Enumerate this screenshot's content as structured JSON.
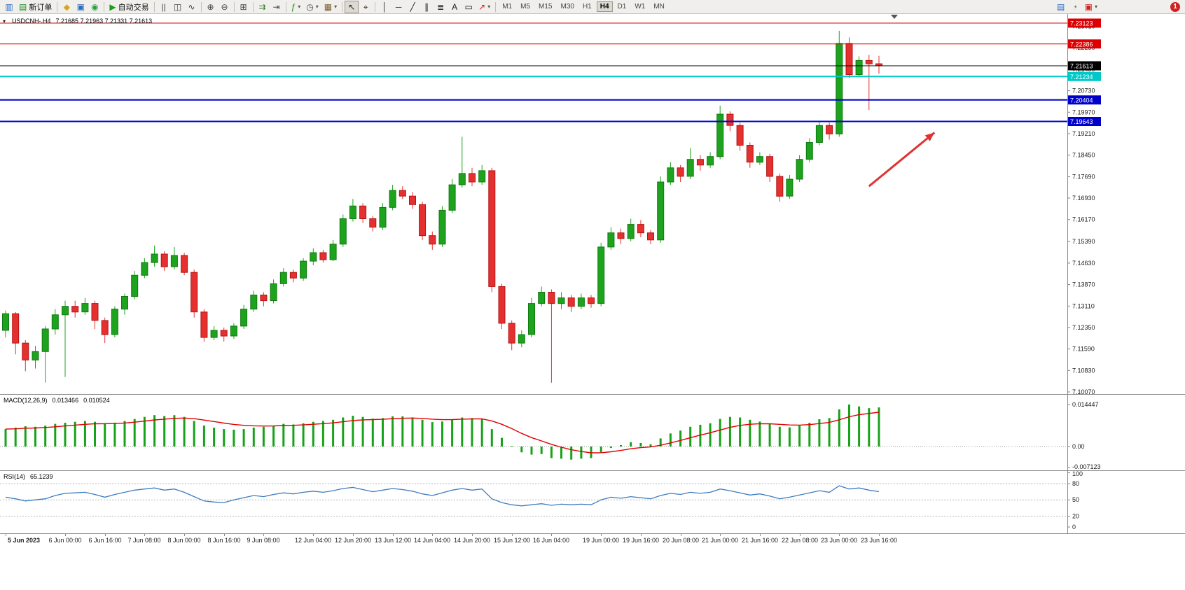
{
  "toolbar": {
    "caret_glyph": "▾",
    "notification_count": "1",
    "timeframes": [
      "M1",
      "M5",
      "M15",
      "M30",
      "H1",
      "H4",
      "D1",
      "W1",
      "MN"
    ],
    "active_timeframe": "H4",
    "items": [
      {
        "name": "new-chart-icon",
        "glyph": "▥",
        "glyph_color": "#2a6bc4"
      },
      {
        "name": "new-order-button",
        "icon_name": "new-order-icon",
        "glyph": "▤",
        "glyph_color": "#1e8a1e",
        "label": "新订单"
      },
      {
        "sep": true
      },
      {
        "name": "metaeditor-icon",
        "glyph": "◆",
        "glyph_color": "#d9a520"
      },
      {
        "name": "market-watch-icon",
        "glyph": "▣",
        "glyph_color": "#2a6bc4"
      },
      {
        "name": "navigator-icon",
        "glyph": "◉",
        "glyph_color": "#2aa045"
      },
      {
        "sep": true
      },
      {
        "name": "autotrading-button",
        "icon_name": "autotrading-icon",
        "glyph": "▶",
        "glyph_color": "#18a018",
        "label": "自动交易"
      },
      {
        "sep": true
      },
      {
        "name": "bar-chart-mode-icon",
        "glyph": "||",
        "glyph_color": "#444444"
      },
      {
        "name": "candlestick-mode-icon",
        "glyph": "◫",
        "glyph_color": "#444444"
      },
      {
        "name": "line-chart-mode-icon",
        "glyph": "∿",
        "glyph_color": "#444444"
      },
      {
        "sep": true
      },
      {
        "name": "zoom-in-icon",
        "glyph": "⊕",
        "glyph_color": "#444444"
      },
      {
        "name": "zoom-out-icon",
        "glyph": "⊖",
        "glyph_color": "#444444"
      },
      {
        "sep": true
      },
      {
        "name": "tile-windows-icon",
        "glyph": "⊞",
        "glyph_color": "#444444"
      },
      {
        "sep": true
      },
      {
        "name": "auto-scroll-icon",
        "glyph": "⇉",
        "glyph_color": "#2a7d2a"
      },
      {
        "name": "chart-shift-icon",
        "glyph": "⇥",
        "glyph_color": "#444444"
      },
      {
        "sep": true
      },
      {
        "name": "indicators-icon",
        "glyph": "ƒ",
        "glyph_color": "#1e8a1e",
        "caret": true
      },
      {
        "name": "periods-icon",
        "glyph": "◷",
        "glyph_color": "#444444",
        "caret": true
      },
      {
        "name": "templates-icon",
        "glyph": "▦",
        "glyph_color": "#7a5c2e",
        "caret": true
      },
      {
        "sep": true
      },
      {
        "name": "cursor-icon",
        "glyph": "↖",
        "glyph_color": "#222222",
        "pressed": true
      },
      {
        "name": "crosshair-icon",
        "glyph": "⌖",
        "glyph_color": "#222222"
      },
      {
        "sep": true
      },
      {
        "name": "vertical-line-icon",
        "glyph": "│",
        "glyph_color": "#222222"
      },
      {
        "name": "horizontal-line-icon",
        "glyph": "─",
        "glyph_color": "#222222"
      },
      {
        "name": "trendline-icon",
        "glyph": "╱",
        "glyph_color": "#222222"
      },
      {
        "name": "channel-icon",
        "glyph": "∥",
        "glyph_color": "#222222"
      },
      {
        "name": "fibonacci-icon",
        "glyph": "≣",
        "glyph_color": "#222222"
      },
      {
        "name": "text-icon",
        "glyph": "A",
        "glyph_color": "#222222"
      },
      {
        "name": "label-icon",
        "glyph": "▭",
        "glyph_color": "#222222"
      },
      {
        "name": "arrows-tool-icon",
        "glyph": "↗",
        "glyph_color": "#c02222",
        "caret": true
      },
      {
        "sep": true
      },
      {
        "timeframes": true
      }
    ],
    "right_icons": [
      {
        "name": "market-depth-icon",
        "glyph": "▤",
        "glyph_color": "#2a6bc4"
      },
      {
        "name": "alerts-icon",
        "glyph": "◔",
        "glyph_color": "#666666"
      },
      {
        "name": "news-icon",
        "glyph": "▣",
        "glyph_color": "#cc2222",
        "caret": true
      }
    ]
  },
  "chart": {
    "collapse_glyph": "▾",
    "symbol_title": "USDCNH-.H4",
    "ohlc_text": "7.21685 7.21963 7.21331 7.21613"
  },
  "chart_data": {
    "type": "candlestick",
    "symbol": "USDCNH",
    "timeframe": "H4",
    "ylim": [
      7.09996,
      7.23445
    ],
    "colors": {
      "up": "#1ea31e",
      "up_border": "#0f7a0f",
      "down": "#e53030",
      "down_border": "#b31414",
      "background": "#ffffff"
    },
    "price_axis_labels": [
      7.2301,
      7.2225,
      7.2149,
      7.2073,
      7.1997,
      7.1921,
      7.1845,
      7.1769,
      7.1693,
      7.1617,
      7.1539,
      7.1463,
      7.1387,
      7.1311,
      7.1235,
      7.1159,
      7.1083,
      7.1007
    ],
    "hlines": [
      {
        "price": 7.23123,
        "label": "7.23123",
        "color": "#dd0000",
        "width": 1
      },
      {
        "price": 7.22386,
        "label": "7.22386",
        "color": "#dd0000",
        "width": 1
      },
      {
        "price": 7.21613,
        "label": "7.21613",
        "color": "#000000",
        "width": 1,
        "role": "current-price"
      },
      {
        "price": 7.21234,
        "label": "7.21234",
        "color": "#00c8c8",
        "width": 2
      },
      {
        "price": 7.20404,
        "label": "7.20404",
        "color": "#0000cc",
        "width": 2
      },
      {
        "price": 7.19643,
        "label": "7.19643",
        "color": "#0000cc",
        "width": 2
      }
    ],
    "candles": [
      [
        7.1225,
        7.1295,
        7.12,
        7.1284
      ],
      [
        7.1284,
        7.129,
        7.114,
        7.118
      ],
      [
        7.118,
        7.119,
        7.108,
        7.112
      ],
      [
        7.112,
        7.117,
        7.109,
        7.115
      ],
      [
        7.115,
        7.124,
        7.104,
        7.123
      ],
      [
        7.123,
        7.13,
        7.121,
        7.128
      ],
      [
        7.128,
        7.133,
        7.106,
        7.131
      ],
      [
        7.131,
        7.133,
        7.127,
        7.129
      ],
      [
        7.129,
        7.134,
        7.128,
        7.132
      ],
      [
        7.132,
        7.133,
        7.123,
        7.126
      ],
      [
        7.126,
        7.127,
        7.118,
        7.121
      ],
      [
        7.121,
        7.131,
        7.12,
        7.13
      ],
      [
        7.13,
        7.1355,
        7.128,
        7.1345
      ],
      [
        7.1345,
        7.1435,
        7.1335,
        7.142
      ],
      [
        7.142,
        7.148,
        7.141,
        7.1465
      ],
      [
        7.1465,
        7.1525,
        7.145,
        7.1495
      ],
      [
        7.1495,
        7.1505,
        7.1435,
        7.145
      ],
      [
        7.145,
        7.152,
        7.144,
        7.149
      ],
      [
        7.149,
        7.15,
        7.142,
        7.143
      ],
      [
        7.143,
        7.144,
        7.127,
        7.129
      ],
      [
        7.129,
        7.13,
        7.1185,
        7.12
      ],
      [
        7.12,
        7.124,
        7.119,
        7.1225
      ],
      [
        7.1225,
        7.1235,
        7.1185,
        7.1205
      ],
      [
        7.1205,
        7.125,
        7.1195,
        7.124
      ],
      [
        7.124,
        7.1315,
        7.123,
        7.13
      ],
      [
        7.13,
        7.1365,
        7.129,
        7.135
      ],
      [
        7.135,
        7.136,
        7.131,
        7.133
      ],
      [
        7.133,
        7.1405,
        7.132,
        7.139
      ],
      [
        7.139,
        7.1445,
        7.138,
        7.143
      ],
      [
        7.143,
        7.144,
        7.1395,
        7.141
      ],
      [
        7.141,
        7.148,
        7.14,
        7.147
      ],
      [
        7.147,
        7.1515,
        7.1455,
        7.15
      ],
      [
        7.15,
        7.151,
        7.1465,
        7.1475
      ],
      [
        7.1475,
        7.1545,
        7.147,
        7.153
      ],
      [
        7.153,
        7.1635,
        7.152,
        7.162
      ],
      [
        7.162,
        7.169,
        7.161,
        7.1665
      ],
      [
        7.1665,
        7.1675,
        7.1605,
        7.162
      ],
      [
        7.162,
        7.163,
        7.1575,
        7.159
      ],
      [
        7.159,
        7.1675,
        7.158,
        7.166
      ],
      [
        7.166,
        7.174,
        7.165,
        7.172
      ],
      [
        7.172,
        7.1735,
        7.169,
        7.17
      ],
      [
        7.17,
        7.1715,
        7.1655,
        7.167
      ],
      [
        7.167,
        7.168,
        7.1545,
        7.156
      ],
      [
        7.156,
        7.1575,
        7.151,
        7.153
      ],
      [
        7.153,
        7.1665,
        7.152,
        7.165
      ],
      [
        7.165,
        7.176,
        7.164,
        7.174
      ],
      [
        7.174,
        7.191,
        7.173,
        7.178
      ],
      [
        7.178,
        7.18,
        7.1735,
        7.175
      ],
      [
        7.175,
        7.181,
        7.174,
        7.179
      ],
      [
        7.179,
        7.18,
        7.136,
        7.138
      ],
      [
        7.138,
        7.139,
        7.123,
        7.125
      ],
      [
        7.125,
        7.126,
        7.1155,
        7.118
      ],
      [
        7.118,
        7.1225,
        7.1165,
        7.121
      ],
      [
        7.121,
        7.134,
        7.12,
        7.132
      ],
      [
        7.132,
        7.138,
        7.131,
        7.136
      ],
      [
        7.136,
        7.137,
        7.104,
        7.132
      ],
      [
        7.132,
        7.136,
        7.13,
        7.134
      ],
      [
        7.134,
        7.135,
        7.129,
        7.131
      ],
      [
        7.131,
        7.1355,
        7.13,
        7.134
      ],
      [
        7.134,
        7.135,
        7.1305,
        7.132
      ],
      [
        7.132,
        7.1535,
        7.131,
        7.152
      ],
      [
        7.152,
        7.159,
        7.151,
        7.157
      ],
      [
        7.157,
        7.1585,
        7.153,
        7.155
      ],
      [
        7.155,
        7.162,
        7.154,
        7.16
      ],
      [
        7.16,
        7.1615,
        7.1555,
        7.157
      ],
      [
        7.157,
        7.158,
        7.153,
        7.1545
      ],
      [
        7.1545,
        7.177,
        7.1535,
        7.175
      ],
      [
        7.175,
        7.182,
        7.174,
        7.18
      ],
      [
        7.18,
        7.181,
        7.175,
        7.177
      ],
      [
        7.177,
        7.187,
        7.176,
        7.183
      ],
      [
        7.183,
        7.1845,
        7.179,
        7.181
      ],
      [
        7.181,
        7.1855,
        7.18,
        7.184
      ],
      [
        7.184,
        7.202,
        7.183,
        7.199
      ],
      [
        7.199,
        7.2,
        7.193,
        7.195
      ],
      [
        7.195,
        7.196,
        7.186,
        7.188
      ],
      [
        7.188,
        7.189,
        7.18,
        7.182
      ],
      [
        7.182,
        7.1855,
        7.181,
        7.184
      ],
      [
        7.184,
        7.185,
        7.175,
        7.177
      ],
      [
        7.177,
        7.178,
        7.168,
        7.17
      ],
      [
        7.17,
        7.1775,
        7.169,
        7.176
      ],
      [
        7.176,
        7.1845,
        7.175,
        7.183
      ],
      [
        7.183,
        7.1905,
        7.182,
        7.189
      ],
      [
        7.189,
        7.1965,
        7.188,
        7.195
      ],
      [
        7.195,
        7.196,
        7.19,
        7.192
      ],
      [
        7.192,
        7.2285,
        7.191,
        7.224
      ],
      [
        7.224,
        7.2262,
        7.2118,
        7.213
      ],
      [
        7.213,
        7.2195,
        7.212,
        7.218
      ],
      [
        7.218,
        7.22,
        7.2005,
        7.2168
      ],
      [
        7.21685,
        7.21963,
        7.21331,
        7.21613
      ]
    ],
    "time_labels": [
      {
        "i": 0,
        "t": "5 Jun 2023",
        "bold": true
      },
      {
        "i": 6,
        "t": "6 Jun 00:00"
      },
      {
        "i": 10,
        "t": "6 Jun 16:00"
      },
      {
        "i": 14,
        "t": "7 Jun 08:00"
      },
      {
        "i": 18,
        "t": "8 Jun 00:00"
      },
      {
        "i": 22,
        "t": "8 Jun 16:00"
      },
      {
        "i": 26,
        "t": "9 Jun 08:00"
      },
      {
        "i": 31,
        "t": "12 Jun 04:00"
      },
      {
        "i": 35,
        "t": "12 Jun 20:00"
      },
      {
        "i": 39,
        "t": "13 Jun 12:00"
      },
      {
        "i": 43,
        "t": "14 Jun 04:00"
      },
      {
        "i": 47,
        "t": "14 Jun 20:00"
      },
      {
        "i": 51,
        "t": "15 Jun 12:00"
      },
      {
        "i": 55,
        "t": "16 Jun 04:00"
      },
      {
        "i": 60,
        "t": "19 Jun 00:00"
      },
      {
        "i": 64,
        "t": "19 Jun 16:00"
      },
      {
        "i": 68,
        "t": "20 Jun 08:00"
      },
      {
        "i": 72,
        "t": "21 Jun 00:00"
      },
      {
        "i": 76,
        "t": "21 Jun 16:00"
      },
      {
        "i": 80,
        "t": "22 Jun 08:00"
      },
      {
        "i": 84,
        "t": "23 Jun 00:00"
      },
      {
        "i": 88,
        "t": "23 Jun 16:00"
      }
    ],
    "annotation_arrow": {
      "from_index": 87.0,
      "from_price": 7.1735,
      "to_index": 93.6,
      "to_price": 7.1925,
      "color": "#e03232"
    },
    "macd": {
      "title": "MACD(12,26,9)",
      "value": "0.013466",
      "signal_value": "0.010524",
      "ylim": [
        -0.00819,
        0.01783
      ],
      "axis": [
        {
          "label": "0.014447",
          "value": 0.014447
        },
        {
          "label": "0.00",
          "value": 0
        },
        {
          "label": "-0.007123",
          "value": -0.007123
        }
      ],
      "histogram": [
        0.006,
        0.0065,
        0.007,
        0.0068,
        0.0072,
        0.0078,
        0.0082,
        0.0085,
        0.0088,
        0.0085,
        0.008,
        0.0082,
        0.0088,
        0.0095,
        0.0102,
        0.0108,
        0.0105,
        0.0108,
        0.0102,
        0.0088,
        0.0072,
        0.0065,
        0.006,
        0.0058,
        0.006,
        0.0065,
        0.0068,
        0.0072,
        0.0078,
        0.0076,
        0.008,
        0.0085,
        0.0088,
        0.0092,
        0.01,
        0.0106,
        0.0102,
        0.0096,
        0.0098,
        0.0104,
        0.0104,
        0.01,
        0.0092,
        0.0084,
        0.0086,
        0.0094,
        0.01,
        0.0098,
        0.0096,
        0.006,
        0.003,
        0.0002,
        -0.002,
        -0.0028,
        -0.0026,
        -0.004,
        -0.0042,
        -0.0045,
        -0.0042,
        -0.004,
        -0.002,
        -0.0005,
        0.0005,
        0.0015,
        0.0012,
        0.0008,
        0.0028,
        0.0045,
        0.0055,
        0.0068,
        0.0075,
        0.008,
        0.0095,
        0.0102,
        0.01,
        0.0092,
        0.0086,
        0.0078,
        0.0068,
        0.0066,
        0.0072,
        0.0082,
        0.0094,
        0.0098,
        0.0128,
        0.014447,
        0.0138,
        0.0132,
        0.013466
      ]
    },
    "rsi": {
      "title": "RSI(14)",
      "value": "65.1239",
      "ylim": [
        -11.6,
        103.2
      ],
      "levels": [
        80,
        50,
        20
      ],
      "axis": [
        {
          "label": "100",
          "value": 100
        },
        {
          "label": "80",
          "value": 80
        },
        {
          "label": "50",
          "value": 50
        },
        {
          "label": "20",
          "value": 20
        },
        {
          "label": "0",
          "value": 0
        }
      ],
      "series": [
        55,
        52,
        48,
        50,
        52,
        58,
        62,
        63,
        64,
        60,
        55,
        60,
        64,
        68,
        70,
        72,
        68,
        70,
        64,
        56,
        48,
        46,
        45,
        50,
        54,
        58,
        56,
        60,
        63,
        61,
        64,
        66,
        64,
        67,
        71,
        73,
        69,
        65,
        68,
        71,
        69,
        66,
        61,
        58,
        63,
        68,
        71,
        68,
        70,
        52,
        45,
        41,
        39,
        41,
        43,
        40,
        42,
        41,
        42,
        41,
        50,
        55,
        53,
        56,
        54,
        52,
        58,
        62,
        60,
        64,
        62,
        64,
        70,
        67,
        63,
        59,
        61,
        57,
        52,
        55,
        59,
        63,
        67,
        64,
        76,
        70,
        72,
        68,
        65.1239
      ]
    }
  }
}
